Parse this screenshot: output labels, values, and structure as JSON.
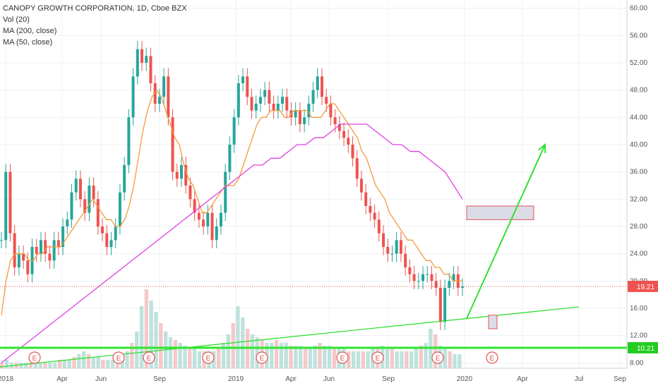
{
  "legend": {
    "title": "CANOPY GROWTH CORPORATION, 1D, Cboe BZX",
    "vol": "Vol (20)",
    "ma200": "MA (200, close)",
    "ma50": "MA (50, close)"
  },
  "chart_data": {
    "type": "candlestick",
    "y_ticks": [
      "60.00",
      "56.00",
      "52.00",
      "48.00",
      "44.00",
      "40.00",
      "36.00",
      "32.00",
      "28.00",
      "24.00",
      "20.00",
      "16.00",
      "12.00",
      "8.00"
    ],
    "ylim": [
      7,
      61
    ],
    "x_ticks": [
      "2018",
      "Apr",
      "Jun",
      "Sep",
      "2019",
      "Apr",
      "Jun",
      "Sep",
      "2020",
      "Apr",
      "Jul",
      "Sep"
    ],
    "last_price": 19.21,
    "last_price_label": "19.21",
    "support_level": 10.21,
    "support_label": "10.21",
    "earnings_marker": "E",
    "earnings_count": 10,
    "close_series": [
      26,
      36,
      27,
      22,
      24,
      23,
      21,
      25,
      24,
      26,
      24,
      23,
      26,
      25,
      28,
      29,
      33,
      35,
      32,
      30,
      34,
      32,
      28,
      27,
      25,
      26,
      28,
      33,
      37,
      44,
      50,
      54,
      52,
      53,
      49,
      46,
      47,
      50,
      44,
      36,
      35,
      37,
      34,
      32,
      30,
      29,
      28,
      30,
      26,
      28,
      30,
      36,
      40,
      44,
      49,
      50,
      47,
      45,
      46,
      47,
      48,
      46,
      45,
      46,
      47,
      45,
      44,
      45,
      43,
      44,
      46,
      48,
      50,
      47,
      46,
      44,
      43,
      42,
      41,
      40,
      38,
      35,
      33,
      31,
      30,
      29,
      27,
      25,
      24,
      24,
      26,
      24,
      22,
      21,
      20,
      20,
      21,
      21,
      20,
      19,
      14,
      19,
      20,
      21,
      19,
      19.2
    ],
    "ma50_series": [
      15,
      20,
      23,
      24,
      24,
      24,
      23,
      23,
      24,
      24,
      25,
      25,
      25,
      25,
      26,
      27,
      28,
      29,
      30,
      31,
      32,
      31,
      30,
      29,
      29,
      28,
      28,
      29,
      31,
      34,
      38,
      42,
      45,
      47,
      48,
      47,
      45,
      43,
      41,
      40,
      37,
      35,
      34,
      32,
      30,
      30,
      31,
      32,
      33,
      34,
      34,
      34,
      35,
      37,
      39,
      41,
      43,
      44,
      44,
      45,
      45,
      45,
      44,
      44,
      45,
      45,
      45,
      45,
      44,
      44,
      44,
      45,
      46,
      46,
      45,
      44,
      43,
      42,
      41,
      39,
      38,
      36,
      34,
      33,
      32,
      30,
      29,
      28,
      27,
      26,
      26,
      25,
      24,
      23,
      23,
      22,
      22,
      21,
      21,
      20,
      20,
      20
    ],
    "ma200_series": [
      8,
      9,
      10,
      11,
      12,
      13,
      14,
      15,
      16,
      17,
      18,
      19,
      20,
      21,
      22,
      23,
      24,
      25,
      26,
      27,
      28,
      29,
      30,
      31,
      32,
      33,
      34,
      35,
      36,
      37,
      37,
      38,
      38,
      39,
      40,
      40,
      41,
      41,
      42,
      43,
      43,
      43,
      43,
      42,
      41,
      40,
      40,
      39,
      39,
      38,
      37,
      36,
      34,
      32
    ],
    "volume_series": [
      2,
      3,
      2,
      2,
      2,
      2,
      2,
      3,
      2,
      2,
      2,
      2,
      3,
      3,
      3,
      4,
      5,
      6,
      5,
      4,
      4,
      3,
      3,
      3,
      3,
      4,
      6,
      9,
      13,
      22,
      28,
      24,
      20,
      16,
      13,
      11,
      10,
      9,
      8,
      7,
      7,
      6,
      6,
      6,
      6,
      7,
      9,
      12,
      16,
      22,
      18,
      14,
      12,
      11,
      10,
      9,
      9,
      10,
      9,
      9,
      8,
      8,
      8,
      7,
      7,
      8,
      9,
      8,
      8,
      7,
      7,
      7,
      6,
      6,
      6,
      6,
      6,
      7,
      7,
      8,
      7,
      7,
      6,
      6,
      6,
      6,
      7,
      8,
      9,
      14,
      12,
      8,
      7,
      6,
      5,
      5
    ],
    "projection_arrow": {
      "from": [
        14.5,
        0.62
      ],
      "to": [
        40,
        0.8
      ]
    },
    "target_box": {
      "low": 29,
      "high": 31
    },
    "entry_box": {
      "low": 13,
      "high": 15
    }
  }
}
